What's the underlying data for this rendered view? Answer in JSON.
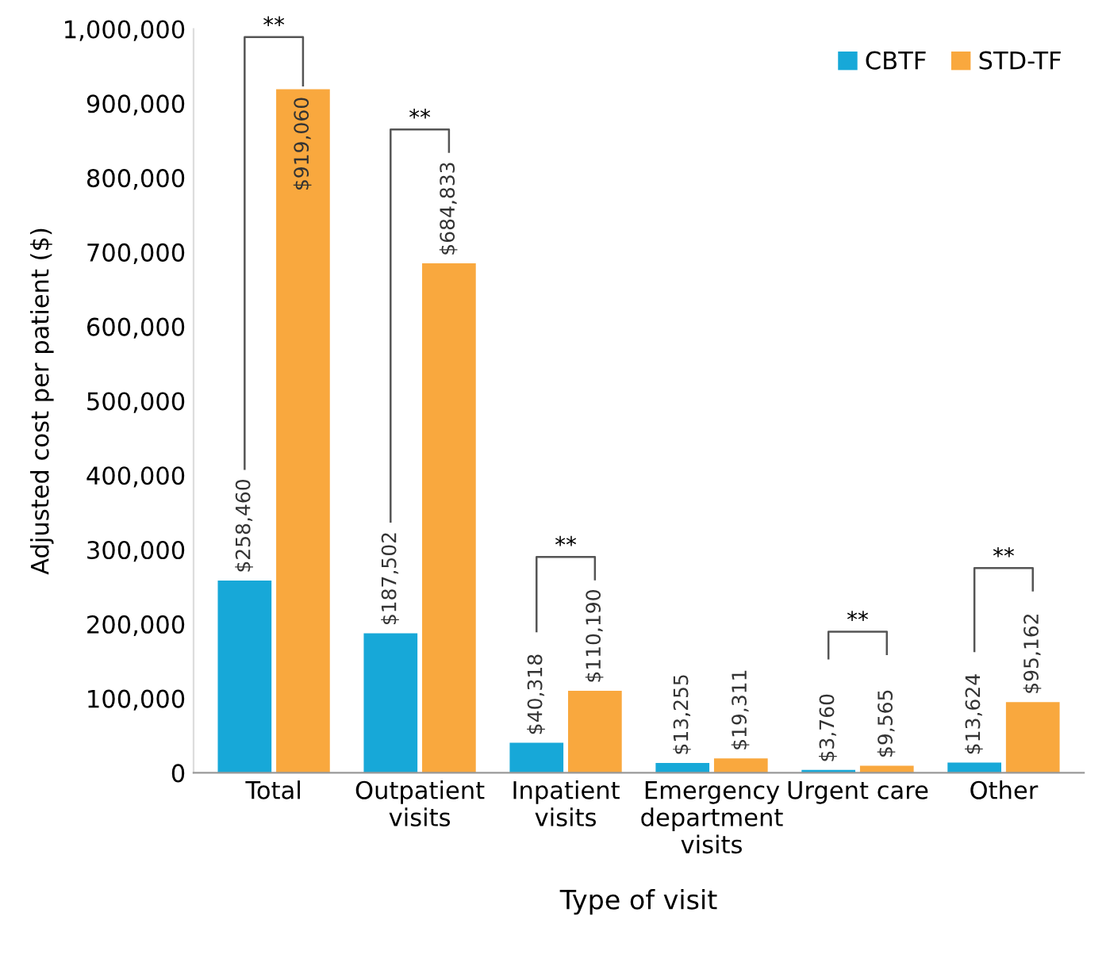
{
  "chart_data": {
    "type": "bar",
    "xlabel": "Type of visit",
    "ylabel": "Adjusted cost per patient ($)",
    "categories": [
      "Total",
      "Outpatient\nvisits",
      "Inpatient\nvisits",
      "Emergency\ndepartment\nvisits",
      "Urgent care",
      "Other"
    ],
    "series": [
      {
        "name": "CBTF",
        "color": "#17a8d8",
        "values": [
          258460,
          187502,
          40318,
          13255,
          3760,
          13624
        ],
        "value_labels": [
          "$258,460",
          "$187,502",
          "$40,318",
          "$13,255",
          "$3,760",
          "$13,624"
        ]
      },
      {
        "name": "STD-TF",
        "color": "#f9a83e",
        "values": [
          919060,
          684833,
          110190,
          19311,
          9565,
          95162
        ],
        "value_labels": [
          "$919,060",
          "$684,833",
          "$110,190",
          "$19,311",
          "$9,565",
          "$95,162"
        ]
      }
    ],
    "annotations": [
      "**",
      "**",
      "**",
      "**",
      "**"
    ],
    "ylim": [
      0,
      1000000
    ],
    "yticks": [
      {
        "value": 0,
        "label": "0"
      },
      {
        "value": 100000,
        "label": "100,000"
      },
      {
        "value": 200000,
        "label": "200,000"
      },
      {
        "value": 300000,
        "label": "300,000"
      },
      {
        "value": 400000,
        "label": "400,000"
      },
      {
        "value": 500000,
        "label": "500,000"
      },
      {
        "value": 600000,
        "label": "600,000"
      },
      {
        "value": 700000,
        "label": "700,000"
      },
      {
        "value": 800000,
        "label": "800,000"
      },
      {
        "value": 900000,
        "label": "900,000"
      },
      {
        "value": 1000000,
        "label": "1,000,000"
      }
    ],
    "legend": "top right",
    "grid": false
  }
}
